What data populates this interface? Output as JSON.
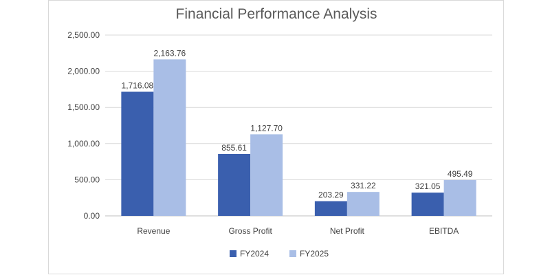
{
  "chart_data": {
    "type": "bar",
    "title": "Financial Performance Analysis",
    "categories": [
      "Revenue",
      "Gross Profit",
      "Net Profit",
      "EBITDA"
    ],
    "series": [
      {
        "name": "FY2024",
        "values": [
          1716.08,
          855.61,
          203.29,
          321.05
        ],
        "color": "#3a5fae"
      },
      {
        "name": "FY2025",
        "values": [
          2163.76,
          1127.7,
          331.22,
          495.49
        ],
        "color": "#a9bee6"
      }
    ],
    "data_labels": [
      [
        "1,716.08",
        "855.61",
        "203.29",
        "321.05"
      ],
      [
        "2,163.76",
        "1,127.70",
        "331.22",
        "495.49"
      ]
    ],
    "yticks": [
      "0.00",
      "500.00",
      "1,000.00",
      "1,500.00",
      "2,000.00",
      "2,500.00"
    ],
    "ylim": [
      0,
      2500
    ],
    "xlabel": "",
    "ylabel": "",
    "grid": true,
    "legend_position": "bottom"
  }
}
